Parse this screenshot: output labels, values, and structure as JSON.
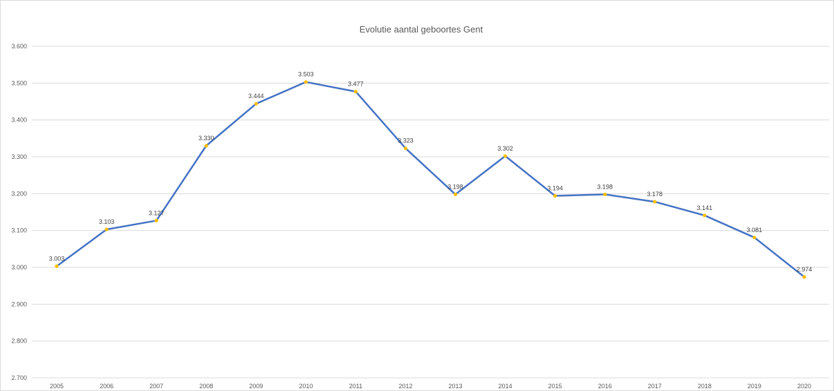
{
  "chart_data": {
    "type": "line",
    "title": "Evolutie aantal geboortes Gent",
    "xlabel": "",
    "ylabel": "",
    "categories": [
      "2005",
      "2006",
      "2007",
      "2008",
      "2009",
      "2010",
      "2011",
      "2012",
      "2013",
      "2014",
      "2015",
      "2016",
      "2017",
      "2018",
      "2019",
      "2020"
    ],
    "series": [
      {
        "values": [
          3003,
          3103,
          3127,
          3330,
          3444,
          3503,
          3477,
          3323,
          3198,
          3302,
          3194,
          3198,
          3178,
          3141,
          3081,
          2974
        ],
        "labels": [
          "3.003",
          "3.103",
          "3.127",
          "3.330",
          "3.444",
          "3.503",
          "3.477",
          "3.323",
          "3.198",
          "3.302",
          "3.194",
          "3.198",
          "3.178",
          "3.141",
          "3.081",
          "2.974"
        ]
      }
    ],
    "ylim": [
      2700,
      3600
    ],
    "yticks": [
      2700,
      2800,
      2900,
      3000,
      3100,
      3200,
      3300,
      3400,
      3500,
      3600
    ],
    "ytick_labels": [
      "2.700",
      "2.800",
      "2.900",
      "3.000",
      "3.100",
      "3.200",
      "3.300",
      "3.400",
      "3.500",
      "3.600"
    ],
    "grid": true,
    "legend": "none",
    "colors": {
      "line": "#4472c4",
      "marker": "#ffc000",
      "grid": "#d9d9d9"
    }
  }
}
